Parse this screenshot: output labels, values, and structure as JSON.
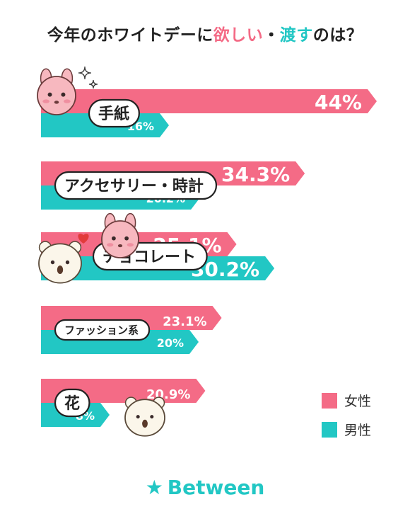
{
  "header": {
    "title_part1": "今年のホワイトデーに",
    "title_part2": "欲しい",
    "title_part3": "・",
    "title_part4": "渡す",
    "title_part5": "のは？"
  },
  "colors": {
    "female": "#f46b86",
    "male": "#22c7c4"
  },
  "legend": {
    "female_label": "女性",
    "male_label": "男性"
  },
  "brand": {
    "star_icon": "★",
    "name": "Between"
  },
  "chart_data": {
    "type": "bar",
    "orientation": "horizontal",
    "categories": [
      "手紙",
      "アクセサリー・時計",
      "チョコレート",
      "ファッション系",
      "花"
    ],
    "series": [
      {
        "name": "女性",
        "values": [
          44,
          34.3,
          25.1,
          23.1,
          20.9
        ],
        "labels": [
          "44%",
          "34.3%",
          "25.1%",
          "23.1%",
          "20.9%"
        ]
      },
      {
        "name": "男性",
        "values": [
          16,
          20.2,
          30.2,
          20,
          8
        ],
        "labels": [
          "16%",
          "20.2%",
          "30.2%",
          "20%",
          "8%"
        ]
      }
    ],
    "legend_position": "bottom-right",
    "grid": false
  }
}
